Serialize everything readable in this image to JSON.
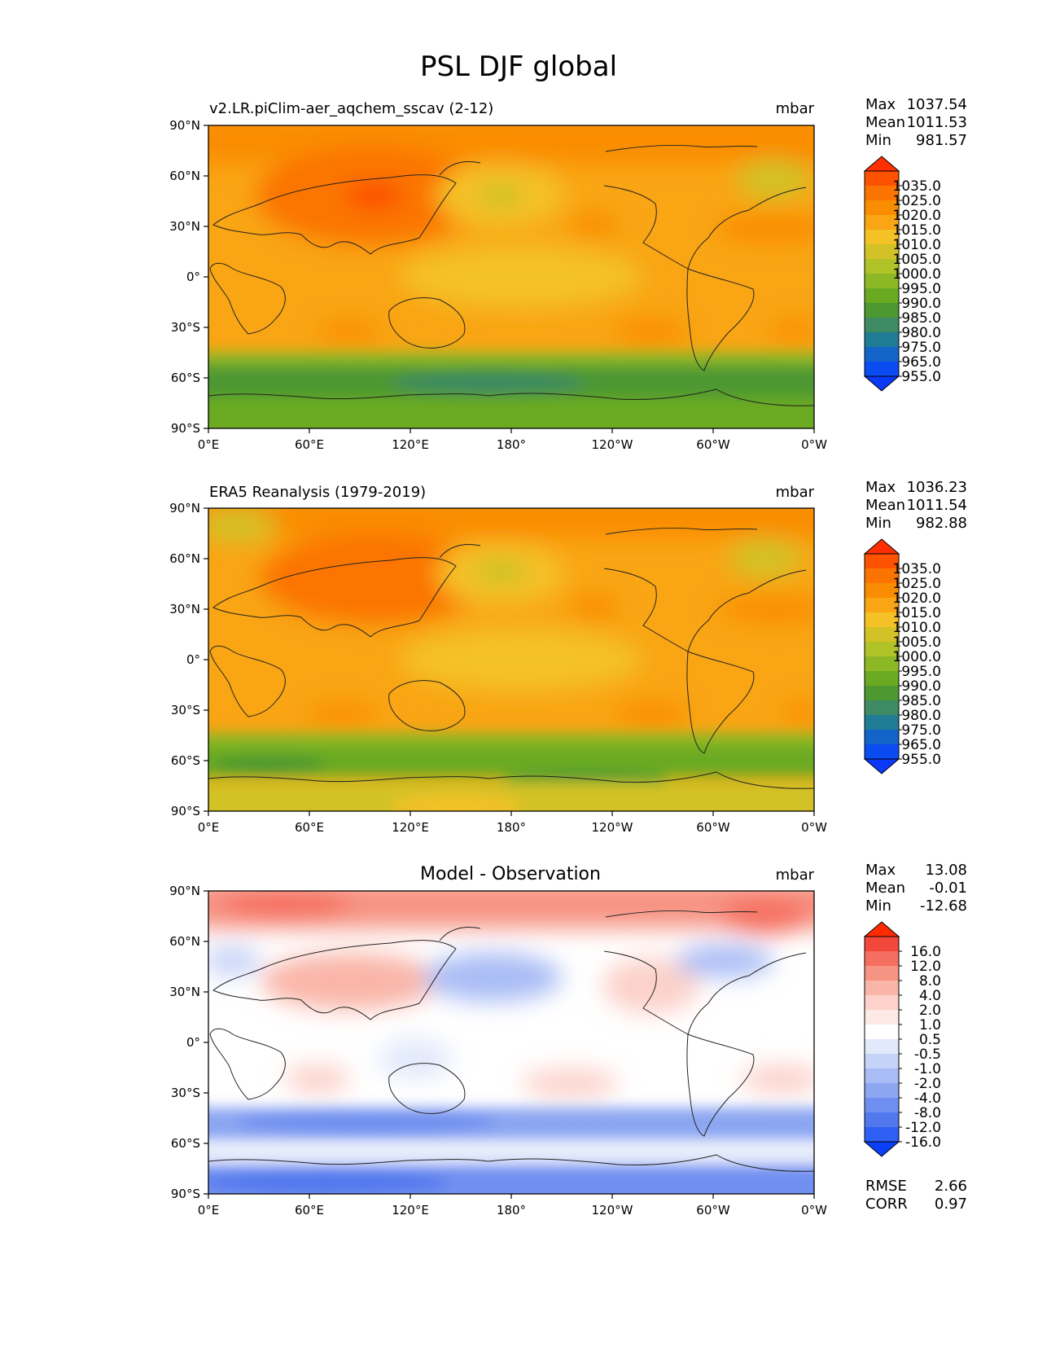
{
  "figure": {
    "title": "PSL DJF global"
  },
  "lat_ticks": [
    "90°N",
    "60°N",
    "30°N",
    "0°",
    "30°S",
    "60°S",
    "90°S"
  ],
  "lon_ticks": [
    "0°E",
    "60°E",
    "120°E",
    "180°",
    "120°W",
    "60°W",
    "0°W"
  ],
  "panels": [
    {
      "id": "model",
      "left_title": "v2.LR.piClim-aer_aqchem_sscav (2-12)",
      "center_title": "",
      "units": "mbar",
      "stats": [
        {
          "label": "Max",
          "value": "1037.54"
        },
        {
          "label": "Mean",
          "value": "1011.53"
        },
        {
          "label": "Min",
          "value": "981.57"
        }
      ],
      "colorbar": {
        "labels": [
          "1035.0",
          "1025.0",
          "1020.0",
          "1015.0",
          "1010.0",
          "1005.0",
          "1000.0",
          "995.0",
          "990.0",
          "985.0",
          "980.0",
          "975.0",
          "965.0",
          "955.0"
        ],
        "colors": [
          "#fe2f00",
          "#fd5200",
          "#fb7400",
          "#fa8c00",
          "#f9a514",
          "#f4c126",
          "#d2c227",
          "#b0c227",
          "#8db825",
          "#6aaa22",
          "#4d9830",
          "#3e8a63",
          "#207c95",
          "#1463c8",
          "#0a4bf2",
          "#0a3af8"
        ]
      },
      "extra_stats": []
    },
    {
      "id": "obs",
      "left_title": "ERA5 Reanalysis (1979-2019)",
      "center_title": "",
      "units": "mbar",
      "stats": [
        {
          "label": "Max",
          "value": "1036.23"
        },
        {
          "label": "Mean",
          "value": "1011.54"
        },
        {
          "label": "Min",
          "value": "982.88"
        }
      ],
      "colorbar": {
        "labels": [
          "1035.0",
          "1025.0",
          "1020.0",
          "1015.0",
          "1010.0",
          "1005.0",
          "1000.0",
          "995.0",
          "990.0",
          "985.0",
          "980.0",
          "975.0",
          "965.0",
          "955.0"
        ],
        "colors": [
          "#fe2f00",
          "#fd5200",
          "#fb7400",
          "#fa8c00",
          "#f9a514",
          "#f4c126",
          "#d2c227",
          "#b0c227",
          "#8db825",
          "#6aaa22",
          "#4d9830",
          "#3e8a63",
          "#207c95",
          "#1463c8",
          "#0a4bf2",
          "#0a3af8"
        ]
      },
      "extra_stats": []
    },
    {
      "id": "diff",
      "left_title": "",
      "center_title": "Model - Observation",
      "units": "mbar",
      "stats": [
        {
          "label": "Max",
          "value": "13.08"
        },
        {
          "label": "Mean",
          "value": "-0.01"
        },
        {
          "label": "Min",
          "value": "-12.68"
        }
      ],
      "colorbar": {
        "labels": [
          "16.0",
          "12.0",
          "8.0",
          "4.0",
          "2.0",
          "1.0",
          "0.5",
          "-0.5",
          "-1.0",
          "-2.0",
          "-4.0",
          "-8.0",
          "-12.0",
          "-16.0"
        ],
        "colors": [
          "#ff2a00",
          "#f4473c",
          "#f56e5f",
          "#f79382",
          "#f9b5a8",
          "#fcd2ca",
          "#fde9e5",
          "#ffffff",
          "#e2e9fb",
          "#c6d3f8",
          "#a9bcf5",
          "#8ca6f2",
          "#6f8ff0",
          "#5278ee",
          "#2f5ff4",
          "#0b3ff8"
        ]
      },
      "extra_stats": [
        {
          "label": "RMSE",
          "value": "2.66"
        },
        {
          "label": "CORR",
          "value": "0.97"
        }
      ]
    }
  ]
}
